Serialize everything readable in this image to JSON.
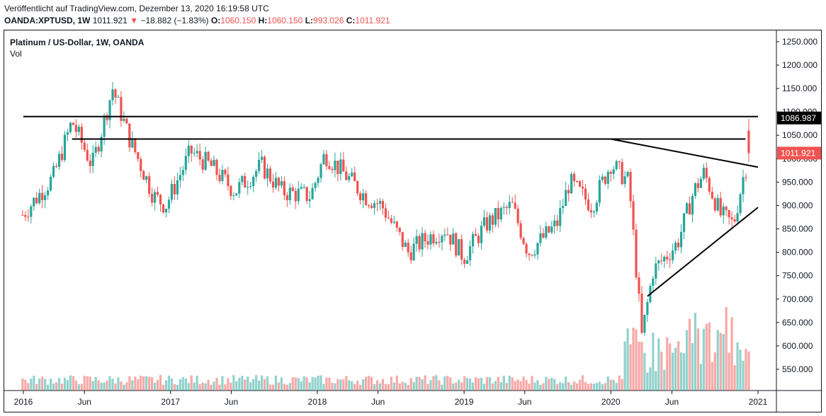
{
  "header": {
    "published": "Veröffentlicht auf TradingView.com, Dezember 13, 2020 16:19:58 UTC",
    "symbol": "OANDA:XPTUSD, 1W",
    "last": "1011.921",
    "change_arrow": "▼",
    "change": "−18.882 (−1.83%)",
    "o_label": "O:",
    "o": "1060.150",
    "h_label": "H:",
    "h": "1060.150",
    "l_label": "L:",
    "l": "993.026",
    "c_label": "C:",
    "c": "1011.921"
  },
  "legend": {
    "title": "Platinum / US-Dollar, 1W, OANDA",
    "vol": "Vol"
  },
  "colors": {
    "up": "#26a69a",
    "down": "#ef5350",
    "line": "#000000"
  },
  "chart_data": {
    "type": "candlestick",
    "title": "Platinum / US-Dollar, 1W, OANDA",
    "y_axis": {
      "min": 500,
      "max": 1260,
      "ticks": [
        "1250.000",
        "1200.000",
        "1150.000",
        "1100.000",
        "1050.000",
        "1000.000",
        "950.000",
        "900.000",
        "850.000",
        "800.000",
        "750.000",
        "700.000",
        "650.000",
        "600.000",
        "550.000"
      ]
    },
    "x_axis": {
      "ticks": [
        "2016",
        "Jun",
        "2017",
        "Jun",
        "2018",
        "Jun",
        "2019",
        "Jun",
        "2020",
        "Jun",
        "2021"
      ]
    },
    "price_labels": [
      {
        "value": 1086.987,
        "text": "1086.987",
        "color": "#000000"
      },
      {
        "value": 1011.921,
        "text": "1011.921",
        "color": "#ef5350"
      }
    ],
    "trendlines": [
      {
        "name": "resistance-horizontal",
        "x1": "2016-01",
        "y1": 1090,
        "x2": "2021-01",
        "y2": 1090
      },
      {
        "name": "neckline-horizontal",
        "x1": "2016-05",
        "y1": 1042,
        "x2": "2020-12",
        "y2": 1042
      },
      {
        "name": "descending-trendline",
        "x1": "2020-01",
        "y1": 1042,
        "x2": "2021-01",
        "y2": 982
      },
      {
        "name": "ascending-trendline",
        "x1": "2020-04",
        "y1": 706,
        "x2": "2021-01",
        "y2": 896
      }
    ],
    "price_anchors": [
      [
        "2015-12-30",
        880
      ],
      [
        "2016-03-15",
        960
      ],
      [
        "2016-05-01",
        1080
      ],
      [
        "2016-06-20",
        985
      ],
      [
        "2016-08-10",
        1150
      ],
      [
        "2016-09-20",
        1045
      ],
      [
        "2016-11-20",
        920
      ],
      [
        "2016-12-20",
        900
      ],
      [
        "2017-02-20",
        1015
      ],
      [
        "2017-04-10",
        985
      ],
      [
        "2017-06-10",
        930
      ],
      [
        "2017-08-15",
        985
      ],
      [
        "2017-10-05",
        930
      ],
      [
        "2017-12-15",
        920
      ],
      [
        "2018-01-20",
        1010
      ],
      [
        "2018-03-01",
        975
      ],
      [
        "2018-04-30",
        920
      ],
      [
        "2018-06-10",
        900
      ],
      [
        "2018-08-15",
        800
      ],
      [
        "2018-09-30",
        830
      ],
      [
        "2018-11-15",
        850
      ],
      [
        "2018-12-31",
        790
      ],
      [
        "2019-02-25",
        860
      ],
      [
        "2019-04-30",
        900
      ],
      [
        "2019-06-10",
        800
      ],
      [
        "2019-08-20",
        860
      ],
      [
        "2019-09-20",
        950
      ],
      [
        "2019-11-15",
        900
      ],
      [
        "2020-01-01",
        990
      ],
      [
        "2020-02-15",
        950
      ],
      [
        "2020-03-18",
        620
      ],
      [
        "2020-04-15",
        760
      ],
      [
        "2020-06-15",
        820
      ],
      [
        "2020-07-25",
        930
      ],
      [
        "2020-08-20",
        970
      ],
      [
        "2020-09-30",
        880
      ],
      [
        "2020-11-01",
        860
      ],
      [
        "2020-11-25",
        960
      ],
      [
        "2020-12-11",
        1012
      ]
    ]
  }
}
